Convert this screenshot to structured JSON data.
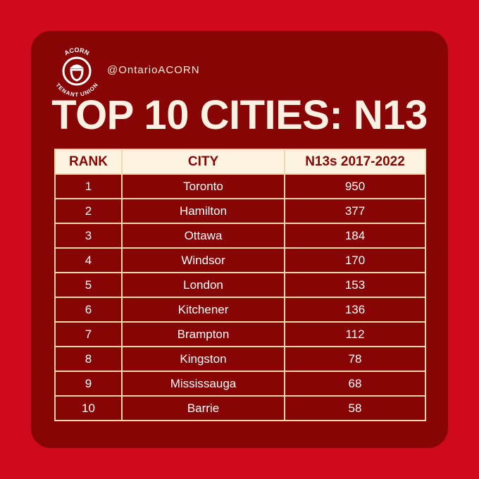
{
  "logo": {
    "top": "ACORN",
    "bottom": "TENANT UNION"
  },
  "header": {
    "handle": "@OntarioACORN",
    "title": "TOP 10 CITIES: N13"
  },
  "table": {
    "columns": [
      "RANK",
      "CITY",
      "N13s 2017-2022"
    ],
    "rows": [
      [
        1,
        "Toronto",
        950
      ],
      [
        2,
        "Hamilton",
        377
      ],
      [
        3,
        "Ottawa",
        184
      ],
      [
        4,
        "Windsor",
        170
      ],
      [
        5,
        "London",
        153
      ],
      [
        6,
        "Kitchener",
        136
      ],
      [
        7,
        "Brampton",
        112
      ],
      [
        8,
        "Kingston",
        78
      ],
      [
        9,
        "Mississauga",
        68
      ],
      [
        10,
        "Barrie",
        58
      ]
    ]
  }
}
